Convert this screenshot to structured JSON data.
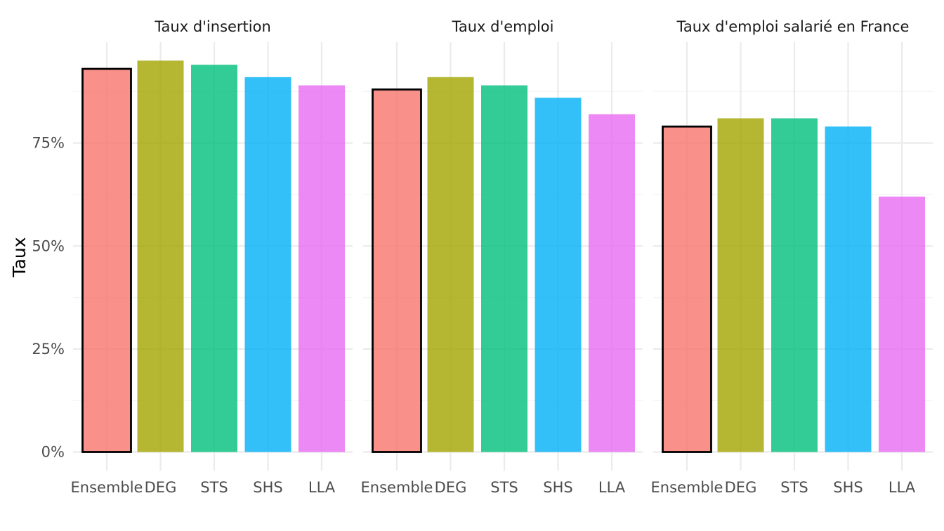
{
  "chart_data": {
    "type": "bar",
    "layout": "faceted",
    "ylabel": "Taux",
    "xlabel": "",
    "ylim": [
      0,
      1
    ],
    "y_ticks": [
      0,
      0.25,
      0.5,
      0.75
    ],
    "y_tick_labels": [
      "0%",
      "25%",
      "50%",
      "75%"
    ],
    "categories": [
      "Ensemble",
      "DEG",
      "STS",
      "SHS",
      "LLA"
    ],
    "colors": [
      "#F8766D",
      "#A3A500",
      "#00BF7D",
      "#00B0F6",
      "#E76BF3"
    ],
    "highlighted_category": "Ensemble",
    "grid": true,
    "legend": "none",
    "facets": [
      {
        "title": "Taux d'insertion",
        "values": [
          0.93,
          0.95,
          0.94,
          0.91,
          0.89
        ]
      },
      {
        "title": "Taux d'emploi",
        "values": [
          0.88,
          0.91,
          0.89,
          0.86,
          0.82
        ]
      },
      {
        "title": "Taux d'emploi salarié en France",
        "values": [
          0.79,
          0.81,
          0.81,
          0.79,
          0.62
        ]
      }
    ]
  }
}
